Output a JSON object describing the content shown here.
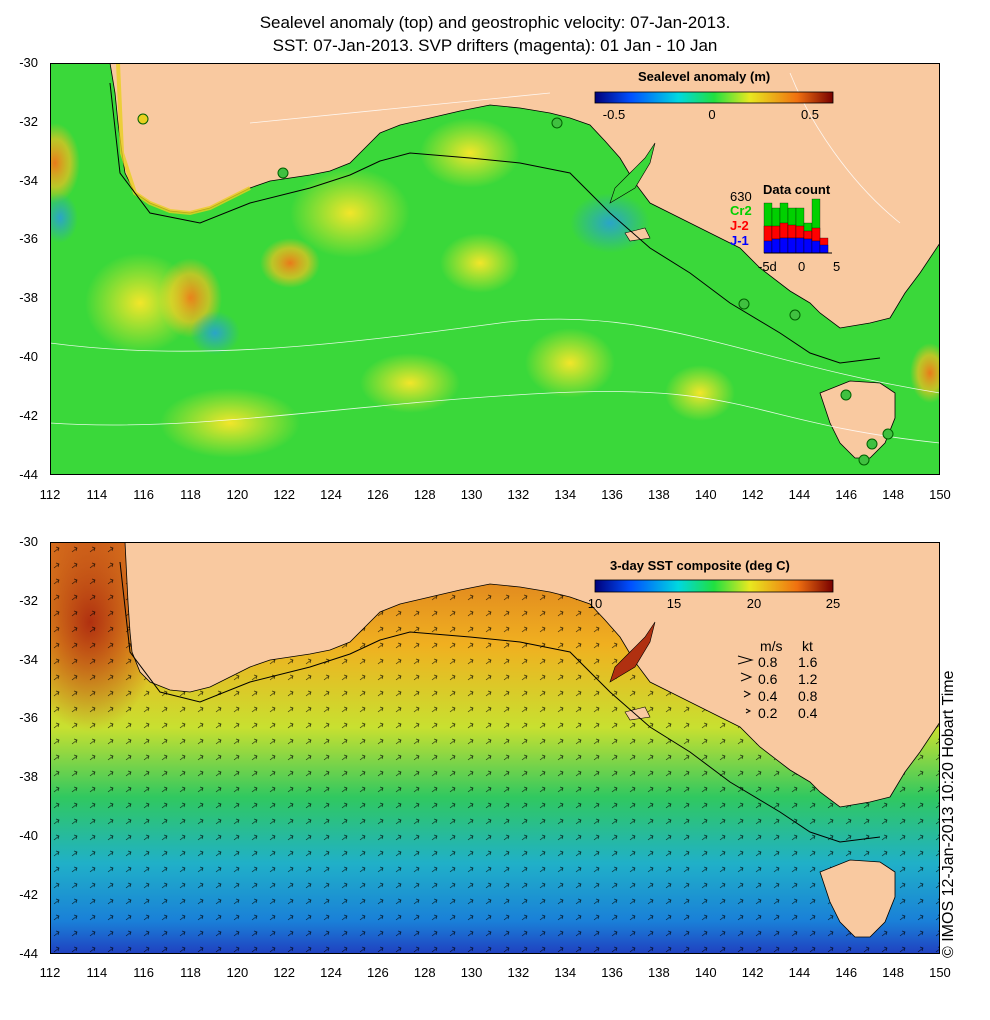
{
  "title": {
    "line1": "Sealevel anomaly (top) and geostrophic velocity: 07-Jan-2013.",
    "line2": "SST: 07-Jan-2013. SVP drifters (magenta): 01 Jan - 10 Jan"
  },
  "latitude_labels": [
    "-30",
    "-32",
    "-34",
    "-36",
    "-38",
    "-40",
    "-42",
    "-44"
  ],
  "longitude_labels": [
    "112",
    "114",
    "116",
    "118",
    "120",
    "122",
    "124",
    "126",
    "128",
    "130",
    "132",
    "134",
    "136",
    "138",
    "140",
    "142",
    "144",
    "146",
    "148",
    "150"
  ],
  "top_panel": {
    "colorbar_title": "Sealevel anomaly (m)",
    "colorbar_ticks": [
      "-0.5",
      "0",
      "0.5"
    ],
    "data_count": {
      "title": "Data count",
      "max_label": "630",
      "series_labels": [
        "Cr2",
        "J-2",
        "J-1"
      ],
      "series_colors": [
        "#00d000",
        "#ff0000",
        "#0000ff"
      ],
      "x_ticks": [
        "-5d",
        "0",
        "5"
      ]
    }
  },
  "bottom_panel": {
    "colorbar_title": "3-day SST composite (deg C)",
    "colorbar_ticks": [
      "10",
      "15",
      "20",
      "25"
    ],
    "velocity_legend": {
      "header_ms": "m/s",
      "header_kt": "kt",
      "rows": [
        {
          "ms": "0.8",
          "kt": "1.6"
        },
        {
          "ms": "0.6",
          "kt": "1.2"
        },
        {
          "ms": "0.4",
          "kt": "0.8"
        },
        {
          "ms": "0.2",
          "kt": "0.4"
        }
      ]
    }
  },
  "credit": "© IMOS 12-Jan-2013 10:20 Hobart Time",
  "colors": {
    "land": "#f9c9a0",
    "coast": "#000000",
    "sla_base": "#3ad83a",
    "sst_warm": "#d9721e",
    "sst_cold": "#1a9ae0"
  }
}
